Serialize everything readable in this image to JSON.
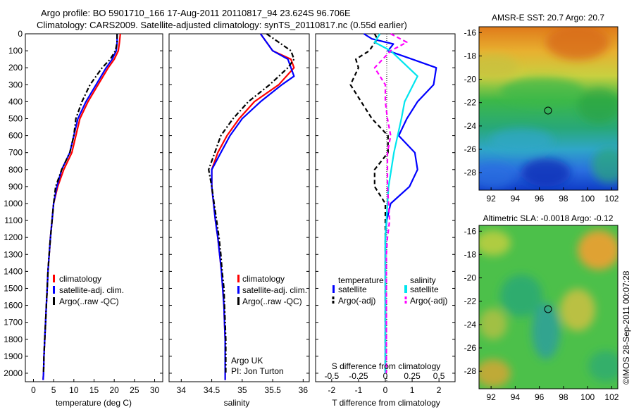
{
  "header": {
    "line1": "Argo profile: BO 5901710_166 17-Aug-2011 20110817_94 23.624S 96.706E",
    "line2": "Climatology: CARS2009. Satellite-adjusted climatology: synTS_20110817.nc (0.55d earlier)"
  },
  "footer_credit": "©IMOS 28-Sep-2011 00:07:28",
  "colors": {
    "climatology": "#ff0000",
    "satellite": "#0000ff",
    "argo": "#000000",
    "salinity_sat": "#00e5ee",
    "salinity_argo": "#ff00ff"
  },
  "legend": {
    "climatology": "climatology",
    "satellite": "satellite-adj. clim.",
    "argo": "Argo(..raw -QC)"
  },
  "diff_legend": {
    "temp_title": "temperature",
    "sal_title": "salinity",
    "satellite": "satellite",
    "argo": "Argo(-adj)"
  },
  "annotation": {
    "line1": "Argo UK",
    "line2": "PI: Jon Turton"
  },
  "chart_data": [
    {
      "type": "line",
      "xlabel": "temperature (deg C)",
      "ylabel": "",
      "xlim": [
        -2,
        32
      ],
      "ylim": [
        2050,
        0
      ],
      "xticks": [
        0,
        5,
        10,
        15,
        20,
        25,
        30
      ],
      "yticks": [
        0,
        100,
        200,
        300,
        400,
        500,
        600,
        700,
        800,
        900,
        1000,
        1100,
        1200,
        1300,
        1400,
        1500,
        1600,
        1700,
        1800,
        1900,
        2000
      ],
      "series": [
        {
          "name": "climatology",
          "color": "#ff0000",
          "style": "solid",
          "points": [
            [
              21.5,
              0
            ],
            [
              21.3,
              50
            ],
            [
              21,
              100
            ],
            [
              20,
              150
            ],
            [
              18.5,
              200
            ],
            [
              16,
              300
            ],
            [
              13.5,
              400
            ],
            [
              11.5,
              500
            ],
            [
              10.5,
              600
            ],
            [
              9.5,
              700
            ],
            [
              7.5,
              800
            ],
            [
              6,
              900
            ],
            [
              5,
              1000
            ],
            [
              4.6,
              1100
            ],
            [
              4.2,
              1200
            ],
            [
              3.9,
              1300
            ],
            [
              3.6,
              1400
            ],
            [
              3.4,
              1500
            ],
            [
              3.2,
              1600
            ],
            [
              3,
              1700
            ],
            [
              2.8,
              1800
            ],
            [
              2.6,
              1900
            ],
            [
              2.5,
              2000
            ],
            [
              2.4,
              2040
            ]
          ]
        },
        {
          "name": "satellite-adj. clim.",
          "color": "#0000ff",
          "style": "solid",
          "points": [
            [
              20.7,
              0
            ],
            [
              20.7,
              50
            ],
            [
              20.5,
              100
            ],
            [
              19.5,
              150
            ],
            [
              18,
              200
            ],
            [
              15.5,
              300
            ],
            [
              13,
              400
            ],
            [
              11,
              500
            ],
            [
              10,
              600
            ],
            [
              9,
              700
            ],
            [
              7,
              800
            ],
            [
              5.8,
              900
            ],
            [
              5,
              1000
            ],
            [
              4.6,
              1100
            ],
            [
              4.2,
              1200
            ],
            [
              3.9,
              1300
            ],
            [
              3.6,
              1400
            ],
            [
              3.4,
              1500
            ],
            [
              3.2,
              1600
            ],
            [
              3,
              1700
            ],
            [
              2.8,
              1800
            ],
            [
              2.6,
              1900
            ],
            [
              2.5,
              2000
            ],
            [
              2.4,
              2040
            ]
          ]
        },
        {
          "name": "Argo(..raw -QC)",
          "color": "#000000",
          "style": "dashdot",
          "points": [
            [
              20.7,
              0
            ],
            [
              20.7,
              50
            ],
            [
              20.3,
              100
            ],
            [
              19,
              150
            ],
            [
              17,
              200
            ],
            [
              14,
              300
            ],
            [
              12,
              400
            ],
            [
              10.5,
              500
            ],
            [
              10,
              600
            ],
            [
              9,
              700
            ],
            [
              7,
              800
            ],
            [
              5.5,
              900
            ],
            [
              5,
              1000
            ],
            [
              4.6,
              1100
            ],
            [
              4.2,
              1200
            ],
            [
              3.9,
              1300
            ],
            [
              3.6,
              1400
            ],
            [
              3.4,
              1500
            ],
            [
              3.2,
              1600
            ],
            [
              3,
              1700
            ],
            [
              2.8,
              1800
            ],
            [
              2.6,
              1900
            ],
            [
              2.5,
              2000
            ]
          ]
        }
      ]
    },
    {
      "type": "line",
      "xlabel": "salinity",
      "ylabel": "",
      "xlim": [
        33.8,
        36.1
      ],
      "ylim": [
        2050,
        0
      ],
      "xticks": [
        34,
        34.5,
        35,
        35.5,
        36
      ],
      "series": [
        {
          "name": "climatology",
          "color": "#ff0000",
          "style": "solid",
          "points": [
            [
              35.3,
              0
            ],
            [
              35.5,
              100
            ],
            [
              35.8,
              150
            ],
            [
              35.85,
              200
            ],
            [
              35.6,
              300
            ],
            [
              35.2,
              400
            ],
            [
              34.95,
              500
            ],
            [
              34.75,
              600
            ],
            [
              34.6,
              700
            ],
            [
              34.5,
              800
            ],
            [
              34.5,
              900
            ],
            [
              34.53,
              1000
            ],
            [
              34.56,
              1100
            ],
            [
              34.6,
              1200
            ],
            [
              34.63,
              1300
            ],
            [
              34.66,
              1400
            ],
            [
              34.68,
              1500
            ],
            [
              34.7,
              1600
            ],
            [
              34.71,
              1700
            ],
            [
              34.72,
              1800
            ],
            [
              34.72,
              1900
            ],
            [
              34.72,
              2000
            ],
            [
              34.72,
              2040
            ]
          ]
        },
        {
          "name": "satellite-adj. clim.",
          "color": "#0000ff",
          "style": "solid",
          "points": [
            [
              35.3,
              0
            ],
            [
              35.5,
              100
            ],
            [
              35.75,
              150
            ],
            [
              35.85,
              250
            ],
            [
              35.65,
              300
            ],
            [
              35.3,
              400
            ],
            [
              35.0,
              500
            ],
            [
              34.8,
              600
            ],
            [
              34.65,
              700
            ],
            [
              34.5,
              800
            ],
            [
              34.5,
              900
            ],
            [
              34.53,
              1000
            ],
            [
              34.56,
              1100
            ],
            [
              34.6,
              1200
            ],
            [
              34.63,
              1300
            ],
            [
              34.66,
              1400
            ],
            [
              34.68,
              1500
            ],
            [
              34.7,
              1600
            ],
            [
              34.71,
              1700
            ],
            [
              34.72,
              1800
            ],
            [
              34.72,
              1900
            ],
            [
              34.72,
              2000
            ],
            [
              34.72,
              2040
            ]
          ]
        },
        {
          "name": "Argo(..raw -QC)",
          "color": "#000000",
          "style": "dashdot",
          "points": [
            [
              35.4,
              0
            ],
            [
              35.6,
              50
            ],
            [
              35.8,
              100
            ],
            [
              35.85,
              150
            ],
            [
              35.75,
              200
            ],
            [
              35.45,
              300
            ],
            [
              35.1,
              400
            ],
            [
              34.85,
              500
            ],
            [
              34.65,
              600
            ],
            [
              34.55,
              700
            ],
            [
              34.45,
              800
            ],
            [
              34.5,
              900
            ],
            [
              34.54,
              1000
            ],
            [
              34.58,
              1100
            ],
            [
              34.62,
              1200
            ],
            [
              34.65,
              1300
            ],
            [
              34.67,
              1400
            ],
            [
              34.7,
              1500
            ],
            [
              34.71,
              1600
            ],
            [
              34.72,
              1700
            ],
            [
              34.73,
              1800
            ],
            [
              34.73,
              1900
            ],
            [
              34.73,
              2000
            ]
          ]
        }
      ]
    },
    {
      "type": "line",
      "xlabel": "T difference from climatology",
      "x2label": "S difference from climatology",
      "xlim": [
        -2.6,
        2.6
      ],
      "x2lim": [
        -0.65,
        0.65
      ],
      "ylim": [
        2050,
        0
      ],
      "xticks": [
        -2,
        -1,
        0,
        1,
        2
      ],
      "x2ticks": [
        -0.5,
        -0.25,
        0,
        0.25,
        0.5
      ],
      "series": [
        {
          "name": "temperature satellite",
          "color": "#0000ff",
          "style": "solid",
          "axis": "T",
          "points": [
            [
              -0.8,
              0
            ],
            [
              -0.5,
              30
            ],
            [
              0.3,
              60
            ],
            [
              0.1,
              100
            ],
            [
              1.0,
              150
            ],
            [
              1.9,
              200
            ],
            [
              1.8,
              300
            ],
            [
              1.2,
              400
            ],
            [
              0.8,
              500
            ],
            [
              0.5,
              600
            ],
            [
              1.1,
              700
            ],
            [
              1.2,
              800
            ],
            [
              0.9,
              900
            ],
            [
              0.2,
              1000
            ],
            [
              0.05,
              1100
            ],
            [
              0,
              1200
            ],
            [
              0,
              1300
            ],
            [
              0,
              1500
            ],
            [
              0,
              1800
            ],
            [
              0,
              2000
            ]
          ]
        },
        {
          "name": "temperature Argo(-adj)",
          "color": "#000000",
          "style": "dashed",
          "axis": "T",
          "points": [
            [
              -0.4,
              0
            ],
            [
              -0.3,
              30
            ],
            [
              -0.6,
              100
            ],
            [
              -1.1,
              150
            ],
            [
              -1.0,
              200
            ],
            [
              -1.3,
              300
            ],
            [
              -0.9,
              400
            ],
            [
              -0.5,
              500
            ],
            [
              0.1,
              600
            ],
            [
              0.1,
              700
            ],
            [
              -0.4,
              800
            ],
            [
              -0.4,
              900
            ],
            [
              0,
              1000
            ],
            [
              0,
              1100
            ],
            [
              0,
              1300
            ],
            [
              0,
              1500
            ],
            [
              0,
              1800
            ],
            [
              0,
              2000
            ]
          ]
        },
        {
          "name": "salinity satellite",
          "color": "#00e5ee",
          "style": "solid",
          "axis": "S",
          "points": [
            [
              -0.05,
              0
            ],
            [
              -0.1,
              50
            ],
            [
              0.05,
              100
            ],
            [
              0.3,
              250
            ],
            [
              0.18,
              400
            ],
            [
              0.15,
              500
            ],
            [
              0.08,
              700
            ],
            [
              0.03,
              900
            ],
            [
              0.02,
              1000
            ],
            [
              0.01,
              1100
            ],
            [
              0,
              1200
            ],
            [
              0,
              1500
            ],
            [
              0,
              2000
            ]
          ]
        },
        {
          "name": "salinity Argo(-adj)",
          "color": "#ff00ff",
          "style": "dashed",
          "axis": "S",
          "points": [
            [
              0.05,
              0
            ],
            [
              0.2,
              50
            ],
            [
              0.05,
              100
            ],
            [
              -0.1,
              200
            ],
            [
              0,
              300
            ],
            [
              0,
              400
            ],
            [
              0.02,
              500
            ],
            [
              0.05,
              600
            ],
            [
              0.02,
              700
            ],
            [
              0.02,
              800
            ],
            [
              0.02,
              900
            ],
            [
              0.03,
              1000
            ],
            [
              0.04,
              1100
            ],
            [
              0.02,
              1200
            ],
            [
              0.01,
              1300
            ],
            [
              0.01,
              1500
            ],
            [
              0.01,
              1800
            ],
            [
              0.01,
              2000
            ]
          ]
        }
      ]
    },
    {
      "type": "heatmap",
      "title": "AMSR-E SST: 20.7 Argo: 20.7",
      "xlim": [
        91,
        102.5
      ],
      "ylim": [
        -29.5,
        -15.5
      ],
      "xticks": [
        92,
        94,
        96,
        98,
        100,
        102
      ],
      "yticks": [
        -16,
        -18,
        -20,
        -22,
        -24,
        -26,
        -28
      ],
      "marker": {
        "x": 96.7,
        "y": -23.6
      }
    },
    {
      "type": "heatmap",
      "title": "Altimetric SLA: -0.0018 Argo: -0.12",
      "xlim": [
        91,
        102.5
      ],
      "ylim": [
        -29.5,
        -15.5
      ],
      "xticks": [
        92,
        94,
        96,
        98,
        100,
        102
      ],
      "yticks": [
        -16,
        -18,
        -20,
        -22,
        -24,
        -26,
        -28
      ],
      "marker": {
        "x": 96.7,
        "y": -23.6
      }
    }
  ]
}
